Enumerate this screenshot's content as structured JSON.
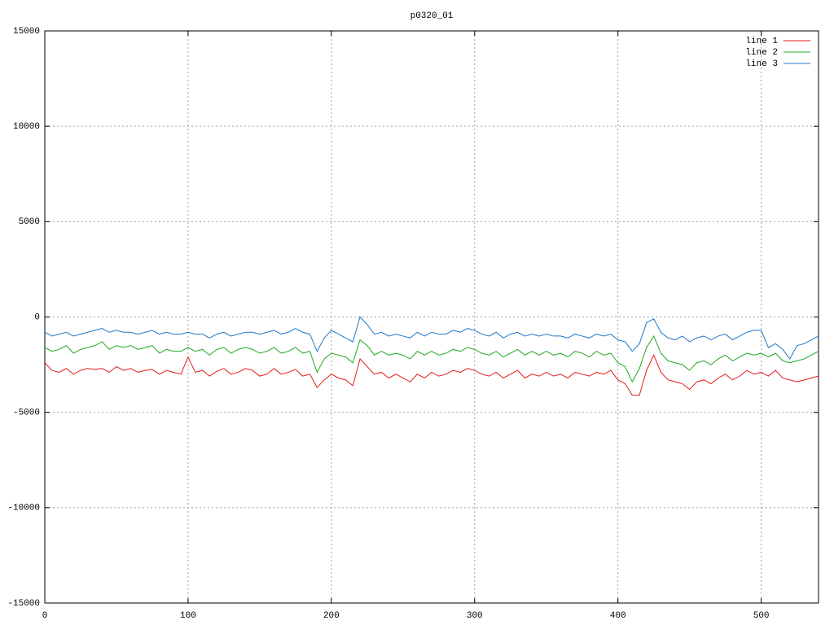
{
  "chart_data": {
    "type": "line",
    "title": "p0320_01",
    "x": [
      0,
      5,
      10,
      15,
      20,
      25,
      30,
      35,
      40,
      45,
      50,
      55,
      60,
      65,
      70,
      75,
      80,
      85,
      90,
      95,
      100,
      105,
      110,
      115,
      120,
      125,
      130,
      135,
      140,
      145,
      150,
      155,
      160,
      165,
      170,
      175,
      180,
      185,
      190,
      195,
      200,
      205,
      210,
      215,
      220,
      225,
      230,
      235,
      240,
      245,
      250,
      255,
      260,
      265,
      270,
      275,
      280,
      285,
      290,
      295,
      300,
      305,
      310,
      315,
      320,
      325,
      330,
      335,
      340,
      345,
      350,
      355,
      360,
      365,
      370,
      375,
      380,
      385,
      390,
      395,
      400,
      405,
      410,
      415,
      420,
      425,
      430,
      435,
      440,
      445,
      450,
      455,
      460,
      465,
      470,
      475,
      480,
      485,
      490,
      495,
      500,
      505,
      510,
      515,
      520,
      525,
      530,
      535,
      540
    ],
    "series": [
      {
        "name": "line 1",
        "color": "#e41a1c",
        "values": [
          -2400,
          -2800,
          -2900,
          -2700,
          -3000,
          -2800,
          -2700,
          -2750,
          -2700,
          -2900,
          -2600,
          -2800,
          -2700,
          -2900,
          -2800,
          -2750,
          -3000,
          -2800,
          -2900,
          -3000,
          -2100,
          -2900,
          -2800,
          -3100,
          -2850,
          -2700,
          -3000,
          -2900,
          -2700,
          -2800,
          -3100,
          -3000,
          -2700,
          -3000,
          -2900,
          -2750,
          -3100,
          -3000,
          -3700,
          -3300,
          -3000,
          -3200,
          -3300,
          -3600,
          -2200,
          -2600,
          -3000,
          -2900,
          -3200,
          -3000,
          -3200,
          -3400,
          -3000,
          -3200,
          -2900,
          -3100,
          -3000,
          -2800,
          -2900,
          -2700,
          -2800,
          -3000,
          -3100,
          -2900,
          -3200,
          -3000,
          -2800,
          -3200,
          -3000,
          -3100,
          -2900,
          -3100,
          -3000,
          -3200,
          -2900,
          -3000,
          -3100,
          -2900,
          -3000,
          -2800,
          -3300,
          -3500,
          -4100,
          -4100,
          -2800,
          -2000,
          -2900,
          -3300,
          -3400,
          -3500,
          -3800,
          -3400,
          -3300,
          -3500,
          -3200,
          -3000,
          -3300,
          -3100,
          -2800,
          -3000,
          -2900,
          -3100,
          -2800,
          -3200,
          -3300,
          -3400,
          -3300,
          -3200,
          -3100
        ]
      },
      {
        "name": "line 2",
        "color": "#1fa81f",
        "values": [
          -1600,
          -1800,
          -1700,
          -1500,
          -1900,
          -1700,
          -1600,
          -1500,
          -1300,
          -1700,
          -1500,
          -1600,
          -1500,
          -1700,
          -1600,
          -1500,
          -1900,
          -1700,
          -1800,
          -1800,
          -1600,
          -1800,
          -1700,
          -2000,
          -1700,
          -1600,
          -1900,
          -1700,
          -1600,
          -1700,
          -1900,
          -1800,
          -1600,
          -1900,
          -1800,
          -1600,
          -1900,
          -1800,
          -2900,
          -2200,
          -1900,
          -2000,
          -2100,
          -2400,
          -1200,
          -1500,
          -2000,
          -1800,
          -2000,
          -1900,
          -2000,
          -2200,
          -1800,
          -2000,
          -1800,
          -2000,
          -1900,
          -1700,
          -1800,
          -1600,
          -1700,
          -1900,
          -2000,
          -1800,
          -2100,
          -1900,
          -1700,
          -2000,
          -1800,
          -2000,
          -1800,
          -2000,
          -1900,
          -2100,
          -1800,
          -1900,
          -2100,
          -1800,
          -2000,
          -1900,
          -2400,
          -2600,
          -3400,
          -2700,
          -1600,
          -1000,
          -1900,
          -2300,
          -2400,
          -2500,
          -2800,
          -2400,
          -2300,
          -2500,
          -2200,
          -2000,
          -2300,
          -2100,
          -1900,
          -2000,
          -1900,
          -2100,
          -1900,
          -2300,
          -2400,
          -2300,
          -2200,
          -2000,
          -1800
        ]
      },
      {
        "name": "line 3",
        "color": "#1f78c8",
        "values": [
          -800,
          -1000,
          -900,
          -800,
          -1000,
          -900,
          -800,
          -700,
          -600,
          -800,
          -700,
          -800,
          -800,
          -900,
          -800,
          -700,
          -900,
          -800,
          -900,
          -900,
          -800,
          -900,
          -900,
          -1100,
          -900,
          -800,
          -1000,
          -900,
          -800,
          -800,
          -900,
          -800,
          -700,
          -900,
          -800,
          -600,
          -800,
          -900,
          -1800,
          -1100,
          -700,
          -900,
          -1100,
          -1300,
          0,
          -400,
          -900,
          -800,
          -1000,
          -900,
          -1000,
          -1100,
          -800,
          -1000,
          -800,
          -900,
          -900,
          -700,
          -800,
          -600,
          -700,
          -900,
          -1000,
          -800,
          -1100,
          -900,
          -800,
          -1000,
          -900,
          -1000,
          -900,
          -1000,
          -1000,
          -1100,
          -900,
          -1000,
          -1100,
          -900,
          -1000,
          -900,
          -1200,
          -1300,
          -1800,
          -1400,
          -300,
          -100,
          -800,
          -1100,
          -1200,
          -1000,
          -1300,
          -1100,
          -1000,
          -1200,
          -1000,
          -900,
          -1200,
          -1000,
          -800,
          -700,
          -700,
          -1600,
          -1400,
          -1700,
          -2200,
          -1500,
          -1400,
          -1200,
          -1000
        ]
      }
    ],
    "xlim": [
      0,
      540
    ],
    "xticks": [
      0,
      100,
      200,
      300,
      400,
      500
    ],
    "ylim": [
      -15000,
      15000
    ],
    "yticks": [
      -15000,
      -10000,
      -5000,
      0,
      5000,
      10000,
      15000
    ],
    "grid": true,
    "legend": "top-right"
  }
}
